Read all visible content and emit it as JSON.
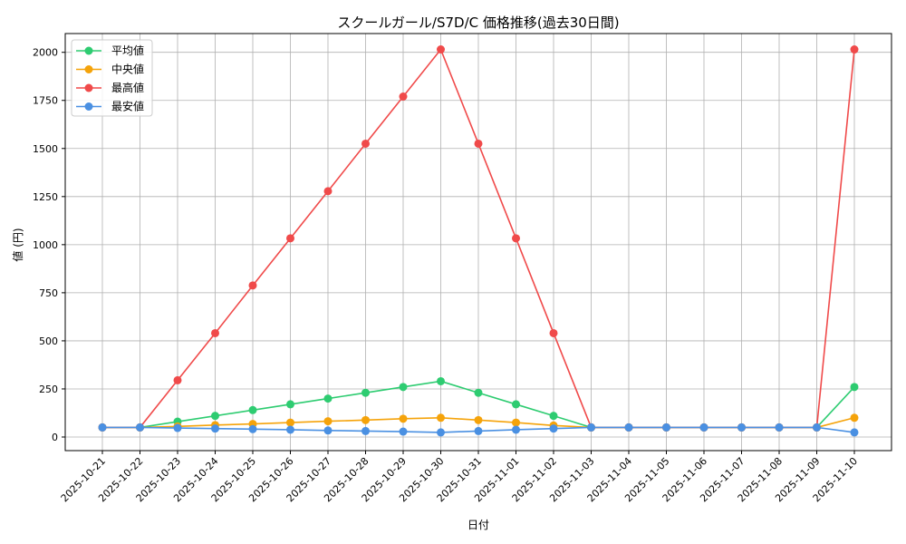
{
  "chart_data": {
    "type": "line",
    "title": "スクールガール/S7D/C 価格推移(過去30日間)",
    "xlabel": "日付",
    "ylabel": "値 (円)",
    "x": [
      "2025-10-21",
      "2025-10-22",
      "2025-10-23",
      "2025-10-24",
      "2025-10-25",
      "2025-10-26",
      "2025-10-27",
      "2025-10-28",
      "2025-10-29",
      "2025-10-30",
      "2025-10-31",
      "2025-11-01",
      "2025-11-02",
      "2025-11-03",
      "2025-11-04",
      "2025-11-05",
      "2025-11-06",
      "2025-11-07",
      "2025-11-08",
      "2025-11-09",
      "2025-11-10"
    ],
    "ylim": [
      -70,
      2110
    ],
    "yticks": [
      0,
      250,
      500,
      750,
      1000,
      1250,
      1500,
      1750,
      2000
    ],
    "grid": true,
    "legend": "upper-left",
    "series": [
      {
        "name": "平均値",
        "color": "#2ecc71",
        "values": [
          50,
          50,
          80,
          110,
          140,
          170,
          200,
          230,
          260,
          290,
          230,
          170,
          110,
          50,
          50,
          50,
          50,
          50,
          50,
          50,
          260
        ]
      },
      {
        "name": "中央値",
        "color": "#f5a30a",
        "values": [
          50,
          50,
          55,
          62,
          68,
          75,
          82,
          88,
          95,
          100,
          88,
          75,
          60,
          50,
          50,
          50,
          50,
          50,
          50,
          50,
          100
        ]
      },
      {
        "name": "最高値",
        "color": "#f04a4a",
        "values": [
          50,
          50,
          295,
          540,
          788,
          1033,
          1278,
          1525,
          1770,
          2015,
          1525,
          1033,
          540,
          50,
          50,
          50,
          50,
          50,
          50,
          50,
          2015
        ]
      },
      {
        "name": "最安値",
        "color": "#4a90e2",
        "values": [
          50,
          50,
          47,
          44,
          41,
          38,
          34,
          31,
          28,
          24,
          31,
          38,
          44,
          50,
          50,
          50,
          50,
          50,
          50,
          50,
          24
        ]
      }
    ]
  }
}
